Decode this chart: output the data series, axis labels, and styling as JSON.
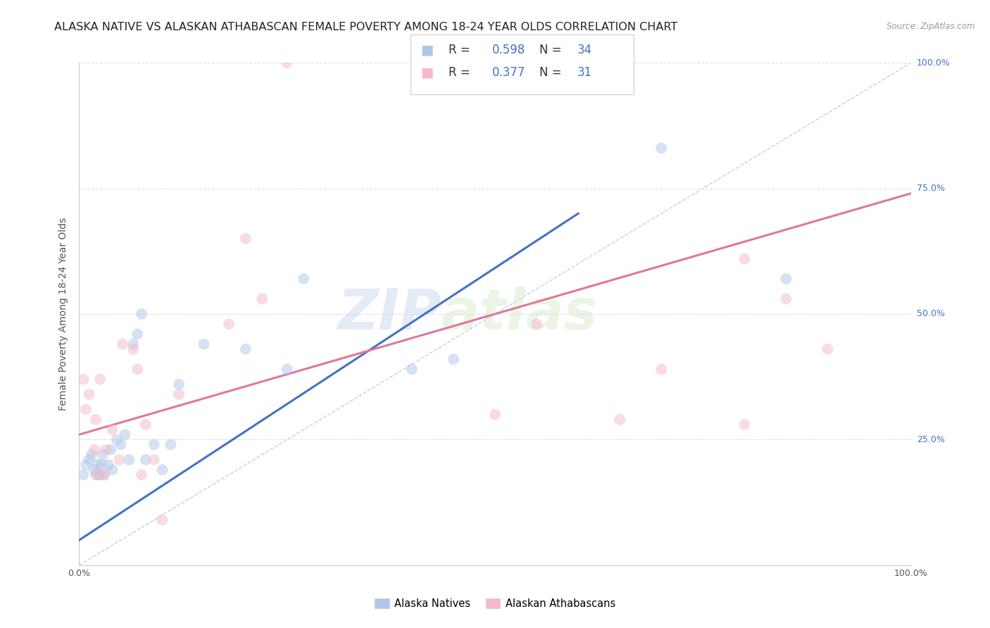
{
  "title": "ALASKA NATIVE VS ALASKAN ATHABASCAN FEMALE POVERTY AMONG 18-24 YEAR OLDS CORRELATION CHART",
  "source": "Source: ZipAtlas.com",
  "ylabel": "Female Poverty Among 18-24 Year Olds",
  "xlim": [
    0,
    1
  ],
  "ylim": [
    0,
    1
  ],
  "xticks": [
    0,
    0.25,
    0.5,
    0.75,
    1.0
  ],
  "xticklabels": [
    "0.0%",
    "",
    "",
    "",
    "100.0%"
  ],
  "yticks": [
    0,
    0.25,
    0.5,
    0.75,
    1.0
  ],
  "yticklabels": [
    "",
    "25.0%",
    "50.0%",
    "75.0%",
    "100.0%"
  ],
  "blue_R": 0.598,
  "blue_N": 34,
  "pink_R": 0.377,
  "pink_N": 31,
  "watermark_zip": "ZIP",
  "watermark_atlas": "atlas",
  "blue_color": "#aec6e8",
  "pink_color": "#f4b8c8",
  "blue_line_color": "#4472c4",
  "pink_line_color": "#e07898",
  "dashed_line_color": "#aec6e8",
  "legend_label_blue": "Alaska Natives",
  "legend_label_pink": "Alaskan Athabascans",
  "blue_scatter_x": [
    0.005,
    0.008,
    0.012,
    0.015,
    0.018,
    0.02,
    0.022,
    0.025,
    0.027,
    0.028,
    0.03,
    0.035,
    0.038,
    0.04,
    0.045,
    0.05,
    0.055,
    0.06,
    0.065,
    0.07,
    0.075,
    0.08,
    0.09,
    0.1,
    0.11,
    0.12,
    0.15,
    0.2,
    0.25,
    0.27,
    0.4,
    0.45,
    0.7,
    0.85
  ],
  "blue_scatter_y": [
    0.18,
    0.2,
    0.21,
    0.22,
    0.19,
    0.18,
    0.2,
    0.18,
    0.2,
    0.22,
    0.18,
    0.2,
    0.23,
    0.19,
    0.25,
    0.24,
    0.26,
    0.21,
    0.44,
    0.46,
    0.5,
    0.21,
    0.24,
    0.19,
    0.24,
    0.36,
    0.44,
    0.43,
    0.39,
    0.57,
    0.39,
    0.41,
    0.83,
    0.57
  ],
  "pink_scatter_x": [
    0.005,
    0.008,
    0.012,
    0.018,
    0.02,
    0.022,
    0.025,
    0.03,
    0.032,
    0.04,
    0.048,
    0.052,
    0.065,
    0.07,
    0.075,
    0.08,
    0.09,
    0.1,
    0.12,
    0.18,
    0.2,
    0.22,
    0.25,
    0.5,
    0.55,
    0.65,
    0.7,
    0.8,
    0.8,
    0.85,
    0.9
  ],
  "pink_scatter_y": [
    0.37,
    0.31,
    0.34,
    0.23,
    0.29,
    0.18,
    0.37,
    0.18,
    0.23,
    0.27,
    0.21,
    0.44,
    0.43,
    0.39,
    0.18,
    0.28,
    0.21,
    0.09,
    0.34,
    0.48,
    0.65,
    0.53,
    1.0,
    0.3,
    0.48,
    0.29,
    0.39,
    0.61,
    0.28,
    0.53,
    0.43
  ],
  "blue_line_x0": 0.0,
  "blue_line_x1": 0.6,
  "blue_line_y0": 0.05,
  "blue_line_y1": 0.7,
  "pink_line_x0": 0.0,
  "pink_line_x1": 1.0,
  "pink_line_y0": 0.26,
  "pink_line_y1": 0.74,
  "dashed_line_x": [
    0.0,
    1.0
  ],
  "dashed_line_y": [
    0.0,
    1.0
  ],
  "background_color": "#ffffff",
  "grid_color": "#e0e0e0",
  "title_fontsize": 11.5,
  "axis_label_fontsize": 10,
  "tick_fontsize": 9,
  "scatter_size": 130,
  "scatter_alpha": 0.5
}
